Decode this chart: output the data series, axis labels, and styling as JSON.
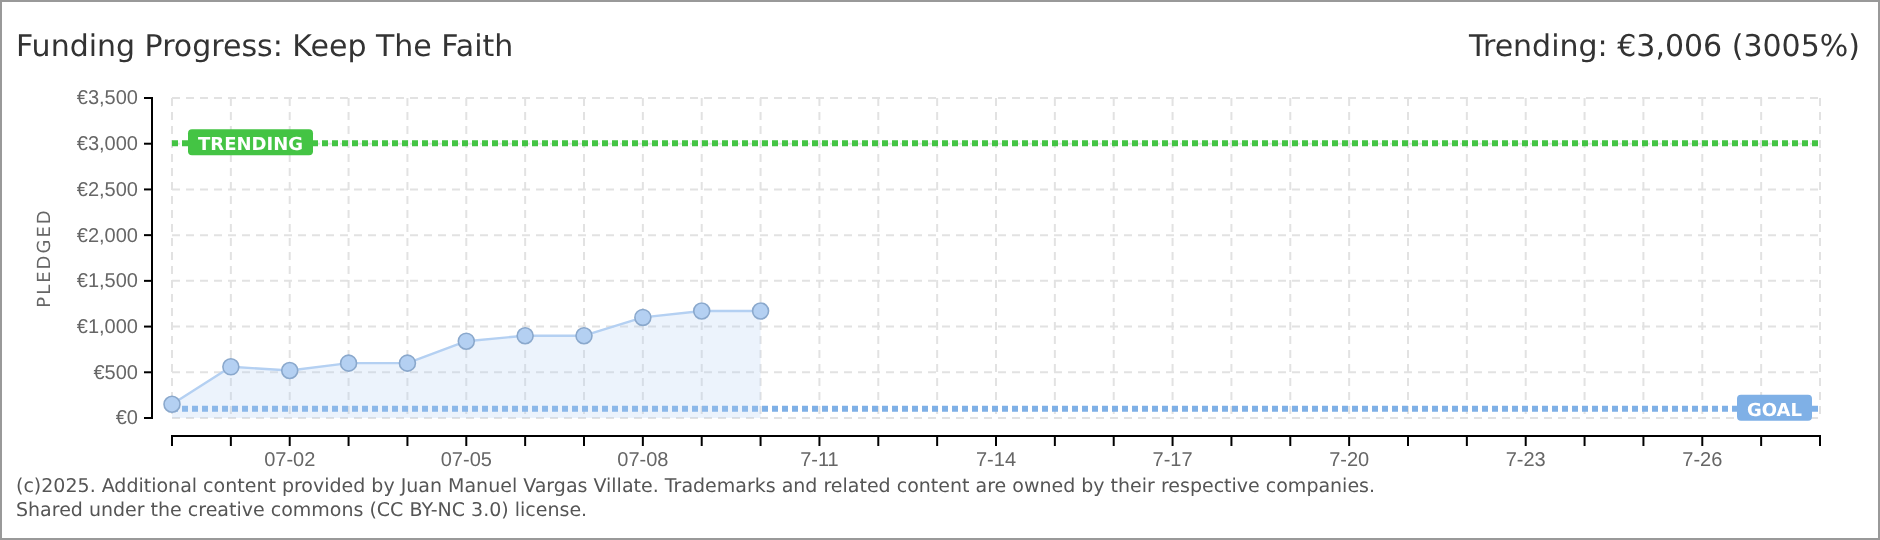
{
  "chart_data": {
    "type": "area",
    "title": "Funding Progress: Keep The Faith",
    "subtitle": "Trending: €3,006 (3005%)",
    "ylabel": "PLEDGED",
    "categories": [
      null,
      null,
      "07-02",
      null,
      null,
      "07-05",
      null,
      null,
      "07-08",
      null,
      null,
      "7-11",
      null,
      null,
      "7-14",
      null,
      null,
      "7-17",
      null,
      null,
      "7-20",
      null,
      null,
      "7-23",
      null,
      null,
      "7-26",
      null,
      null
    ],
    "series": [
      {
        "color": "#b4d0f2",
        "values": [
          150,
          560,
          520,
          600,
          600,
          840,
          900,
          900,
          1100,
          1170,
          1170,
          null,
          null,
          null,
          null,
          null,
          null,
          null,
          null,
          null,
          null,
          null,
          null,
          null,
          null,
          null,
          null,
          null,
          null
        ]
      }
    ],
    "ylim": [
      0,
      3500
    ],
    "yticks": [
      {
        "value": 0,
        "label": "€0"
      },
      {
        "value": 500,
        "label": "€500"
      },
      {
        "value": 1000,
        "label": "€1,000"
      },
      {
        "value": 1500,
        "label": "€1,500"
      },
      {
        "value": 2000,
        "label": "€2,000"
      },
      {
        "value": 2500,
        "label": "€2,500"
      },
      {
        "value": 3000,
        "label": "€3,000"
      },
      {
        "value": 3500,
        "label": "€3,500"
      }
    ],
    "grid": true,
    "marker": "circle",
    "ref_lines": [
      {
        "axis": "y",
        "value": 3006,
        "label": "TRENDING",
        "color": "#44c444",
        "line_style": "dotted"
      },
      {
        "axis": "y",
        "value": 100,
        "label": "GOAL",
        "color": "#7fb0e6",
        "line_style": "dotted"
      }
    ],
    "annotations": [
      "(c)2025. Additional content provided by Juan Manuel Vargas Villate. Trademarks and related content are owned by their respective companies.",
      "Shared under the creative commons (CC BY-NC 3.0) license."
    ]
  }
}
